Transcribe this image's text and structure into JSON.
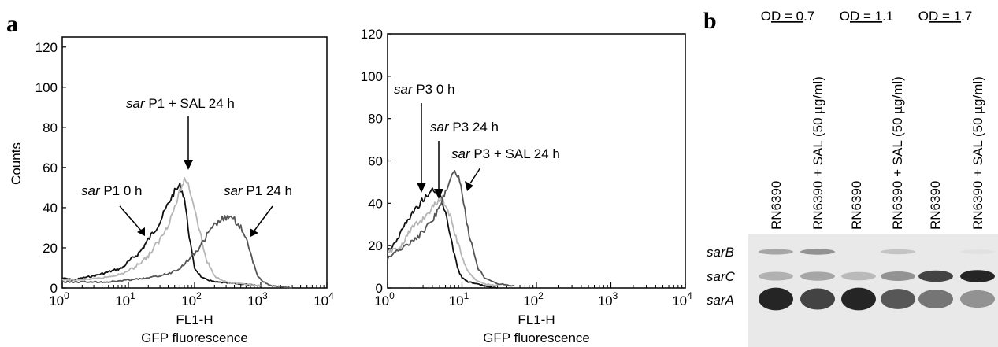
{
  "panel_labels": {
    "a": "a",
    "b": "b"
  },
  "chart_data": [
    {
      "type": "line",
      "title": "",
      "xlabel": "FL1-H",
      "xlabel2": "GFP fluorescence",
      "ylabel": "Counts",
      "xscale": "log",
      "xlim": [
        1,
        10000
      ],
      "ylim": [
        0,
        125
      ],
      "yticks": [
        0,
        20,
        40,
        60,
        80,
        100,
        120
      ],
      "xticks": [
        {
          "base": "10",
          "exp": "0"
        },
        {
          "base": "10",
          "exp": "1"
        },
        {
          "base": "10",
          "exp": "2"
        },
        {
          "base": "10",
          "exp": "3"
        },
        {
          "base": "10",
          "exp": "4"
        }
      ],
      "series": [
        {
          "name": "sar P1 0 h",
          "color": "#111111",
          "points": [
            [
              1,
              5
            ],
            [
              1.5,
              4
            ],
            [
              2,
              5
            ],
            [
              3,
              6
            ],
            [
              5,
              8
            ],
            [
              8,
              10
            ],
            [
              10,
              13
            ],
            [
              15,
              18
            ],
            [
              20,
              24
            ],
            [
              30,
              33
            ],
            [
              40,
              42
            ],
            [
              50,
              48
            ],
            [
              60,
              51
            ],
            [
              70,
              45
            ],
            [
              80,
              30
            ],
            [
              90,
              18
            ],
            [
              100,
              10
            ],
            [
              130,
              5
            ],
            [
              200,
              3
            ],
            [
              500,
              2
            ],
            [
              1000,
              1
            ]
          ]
        },
        {
          "name": "sar P1 + SAL 24 h",
          "color": "#b5b5b5",
          "points": [
            [
              1,
              4
            ],
            [
              2,
              4
            ],
            [
              4,
              5
            ],
            [
              8,
              7
            ],
            [
              12,
              10
            ],
            [
              20,
              16
            ],
            [
              30,
              24
            ],
            [
              40,
              32
            ],
            [
              50,
              40
            ],
            [
              60,
              48
            ],
            [
              70,
              54
            ],
            [
              80,
              52
            ],
            [
              100,
              40
            ],
            [
              120,
              28
            ],
            [
              150,
              14
            ],
            [
              200,
              6
            ],
            [
              300,
              3
            ],
            [
              500,
              2
            ],
            [
              1000,
              1
            ]
          ]
        },
        {
          "name": "sar P1 24 h",
          "color": "#555555",
          "points": [
            [
              1,
              3
            ],
            [
              5,
              3
            ],
            [
              10,
              4
            ],
            [
              20,
              5
            ],
            [
              40,
              7
            ],
            [
              60,
              10
            ],
            [
              80,
              14
            ],
            [
              100,
              17
            ],
            [
              130,
              22
            ],
            [
              160,
              27
            ],
            [
              200,
              31
            ],
            [
              250,
              34
            ],
            [
              300,
              35
            ],
            [
              400,
              34
            ],
            [
              500,
              30
            ],
            [
              600,
              24
            ],
            [
              700,
              17
            ],
            [
              800,
              11
            ],
            [
              900,
              6
            ],
            [
              1100,
              3
            ],
            [
              1500,
              1
            ],
            [
              3000,
              0
            ]
          ]
        }
      ],
      "annotations": [
        {
          "italic": "sar",
          "text": " P1 + SAL 24 h",
          "target": "sar P1 + SAL 24 h"
        },
        {
          "italic": "sar",
          "text": " P1 0 h",
          "target": "sar P1 0 h"
        },
        {
          "italic": "sar",
          "text": " P1 24 h",
          "target": "sar P1 24 h"
        }
      ]
    },
    {
      "type": "line",
      "title": "",
      "xlabel": "FL1-H",
      "xlabel2": "GFP fluorescence",
      "ylabel": "",
      "xscale": "log",
      "xlim": [
        1,
        10000
      ],
      "ylim": [
        0,
        120
      ],
      "yticks": [
        0,
        20,
        40,
        60,
        80,
        100,
        120
      ],
      "xticks": [
        {
          "base": "10",
          "exp": "0"
        },
        {
          "base": "10",
          "exp": "1"
        },
        {
          "base": "10",
          "exp": "2"
        },
        {
          "base": "10",
          "exp": "3"
        },
        {
          "base": "10",
          "exp": "4"
        }
      ],
      "series": [
        {
          "name": "sar P3 0 h",
          "color": "#111111",
          "points": [
            [
              1,
              18
            ],
            [
              1.3,
              22
            ],
            [
              1.6,
              28
            ],
            [
              2,
              34
            ],
            [
              2.5,
              38
            ],
            [
              3,
              42
            ],
            [
              3.5,
              44
            ],
            [
              4,
              46
            ],
            [
              5,
              44
            ],
            [
              6,
              36
            ],
            [
              7,
              25
            ],
            [
              8,
              15
            ],
            [
              9,
              8
            ],
            [
              10,
              5
            ],
            [
              12,
              3
            ],
            [
              15,
              2
            ],
            [
              20,
              1
            ],
            [
              30,
              0
            ]
          ]
        },
        {
          "name": "sar P3 24 h",
          "color": "#b5b5b5",
          "points": [
            [
              1,
              16
            ],
            [
              1.5,
              20
            ],
            [
              2,
              27
            ],
            [
              3,
              33
            ],
            [
              4,
              38
            ],
            [
              5,
              42
            ],
            [
              6,
              40
            ],
            [
              7,
              34
            ],
            [
              8,
              26
            ],
            [
              10,
              15
            ],
            [
              12,
              8
            ],
            [
              15,
              4
            ],
            [
              20,
              2
            ],
            [
              30,
              1
            ]
          ]
        },
        {
          "name": "sar P3 + SAL 24 h",
          "color": "#555555",
          "points": [
            [
              1,
              14
            ],
            [
              1.5,
              18
            ],
            [
              2,
              22
            ],
            [
              3,
              26
            ],
            [
              4,
              32
            ],
            [
              5,
              38
            ],
            [
              6,
              45
            ],
            [
              7,
              52
            ],
            [
              8,
              55
            ],
            [
              9,
              52
            ],
            [
              10,
              45
            ],
            [
              11,
              36
            ],
            [
              12,
              28
            ],
            [
              14,
              18
            ],
            [
              16,
              10
            ],
            [
              20,
              5
            ],
            [
              30,
              2
            ],
            [
              50,
              1
            ]
          ]
        }
      ],
      "annotations": [
        {
          "italic": "sar",
          "text": " P3 0 h",
          "target": "sar P3 0 h"
        },
        {
          "italic": "sar",
          "text": " P3 24 h",
          "target": "sar P3 24 h"
        },
        {
          "italic": "sar",
          "text": " P3 + SAL 24 h",
          "target": "sar P3 + SAL 24 h"
        }
      ]
    }
  ],
  "blot": {
    "od_headers": [
      {
        "prefix": "O",
        "underlined": "D = 0",
        "suffix": ".7"
      },
      {
        "prefix": "O",
        "underlined": "D = 1",
        "suffix": ".1"
      },
      {
        "prefix": "O",
        "underlined": "D = 1",
        "suffix": ".7"
      }
    ],
    "lanes": [
      "RN6390",
      "RN6390 + SAL (50 µg/ml)",
      "RN6390",
      "RN6390 + SAL (50 µg/ml)",
      "RN6390",
      "RN6390 + SAL (50 µg/ml)"
    ],
    "band_labels": [
      "sarB",
      "sarC",
      "sarA"
    ],
    "band_intensity": {
      "sarB": [
        0.35,
        0.45,
        0.0,
        0.2,
        0.0,
        0.05
      ],
      "sarC": [
        0.3,
        0.35,
        0.25,
        0.45,
        0.85,
        1.0
      ],
      "sarA": [
        1.0,
        0.85,
        1.0,
        0.75,
        0.6,
        0.45
      ]
    }
  }
}
